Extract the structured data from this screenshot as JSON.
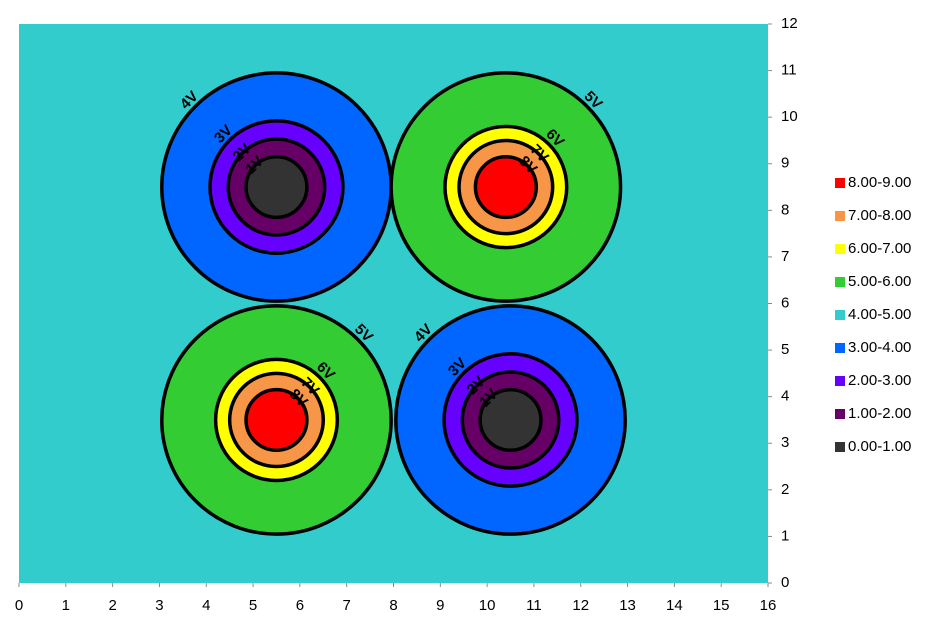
{
  "chart_data": {
    "type": "contour",
    "xlim": [
      0,
      16
    ],
    "xticks": [
      0,
      1,
      2,
      3,
      4,
      5,
      6,
      7,
      8,
      9,
      10,
      11,
      12,
      13,
      14,
      15,
      16
    ],
    "ylim": [
      0,
      12
    ],
    "yticks": [
      0,
      1,
      2,
      3,
      4,
      5,
      6,
      7,
      8,
      9,
      10,
      11,
      12
    ],
    "background_band": 4,
    "bands": [
      {
        "label": "8.00-9.00",
        "color": "#ff0000"
      },
      {
        "label": "7.00-8.00",
        "color": "#f79646"
      },
      {
        "label": "6.00-7.00",
        "color": "#ffff00"
      },
      {
        "label": "5.00-6.00",
        "color": "#33cc33"
      },
      {
        "label": "4.00-5.00",
        "color": "#33cccc"
      },
      {
        "label": "3.00-4.00",
        "color": "#0066ff"
      },
      {
        "label": "2.00-3.00",
        "color": "#6600ff"
      },
      {
        "label": "1.00-2.00",
        "color": "#660066"
      },
      {
        "label": "0.00-1.00",
        "color": "#333333"
      }
    ],
    "wells": [
      {
        "x": 5.5,
        "y": 8.5,
        "levels": [
          {
            "band": 5,
            "r": 2.45,
            "label": "4V"
          },
          {
            "band": 6,
            "r": 1.42,
            "label": "3V"
          },
          {
            "band": 7,
            "r": 1.03,
            "label": "2V"
          },
          {
            "band": 8,
            "r": 0.65,
            "label": "1V"
          }
        ]
      },
      {
        "x": 10.4,
        "y": 8.5,
        "levels": [
          {
            "band": 3,
            "r": 2.45,
            "label": "5V"
          },
          {
            "band": 2,
            "r": 1.3,
            "label": "6V"
          },
          {
            "band": 1,
            "r": 1.0,
            "label": "7V"
          },
          {
            "band": 0,
            "r": 0.65,
            "label": "8V"
          }
        ]
      },
      {
        "x": 5.5,
        "y": 3.5,
        "levels": [
          {
            "band": 3,
            "r": 2.45,
            "label": "5V"
          },
          {
            "band": 2,
            "r": 1.3,
            "label": "6V"
          },
          {
            "band": 1,
            "r": 1.0,
            "label": "7V"
          },
          {
            "band": 0,
            "r": 0.65,
            "label": "8V"
          }
        ]
      },
      {
        "x": 10.5,
        "y": 3.5,
        "levels": [
          {
            "band": 5,
            "r": 2.45,
            "label": "4V"
          },
          {
            "band": 6,
            "r": 1.42,
            "label": "3V"
          },
          {
            "band": 7,
            "r": 1.03,
            "label": "2V"
          },
          {
            "band": 8,
            "r": 0.65,
            "label": "1V"
          }
        ]
      }
    ]
  }
}
